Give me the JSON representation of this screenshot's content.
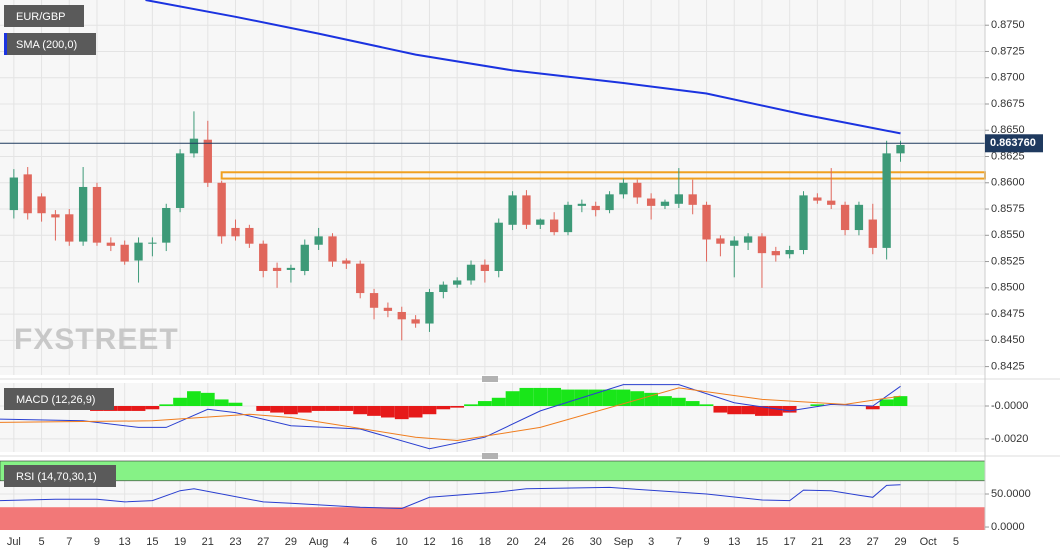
{
  "chart_data": [
    {
      "type": "candlestick",
      "symbol": "EUR/GBP",
      "watermark": "FXSTREET",
      "xlim": [
        -1,
        70.1
      ],
      "ylim": [
        0.8417,
        0.8774
      ],
      "yticks": [
        {
          "value": 0.8425,
          "label": "0.8425"
        },
        {
          "value": 0.845,
          "label": "0.8450"
        },
        {
          "value": 0.8475,
          "label": "0.8475"
        },
        {
          "value": 0.85,
          "label": "0.8500"
        },
        {
          "value": 0.8525,
          "label": "0.8525"
        },
        {
          "value": 0.855,
          "label": "0.8550"
        },
        {
          "value": 0.8575,
          "label": "0.8575"
        },
        {
          "value": 0.86,
          "label": "0.8600"
        },
        {
          "value": 0.8625,
          "label": "0.8625"
        },
        {
          "value": 0.865,
          "label": "0.8650"
        },
        {
          "value": 0.8675,
          "label": "0.8675"
        },
        {
          "value": 0.87,
          "label": "0.8700"
        },
        {
          "value": 0.8725,
          "label": "0.8725"
        },
        {
          "value": 0.875,
          "label": "0.8750"
        }
      ],
      "up_color": "#3d9a78",
      "down_color": "#e0675c",
      "open": [
        0.8574,
        0.8608,
        0.8587,
        0.857,
        0.857,
        0.8544,
        0.8596,
        0.8543,
        0.8541,
        0.8526,
        0.8542,
        0.8543,
        0.8576,
        0.8628,
        0.8641,
        0.86,
        0.8557,
        0.8557,
        0.8542,
        0.8519,
        0.8517,
        0.8516,
        0.8541,
        0.8549,
        0.8526,
        0.8523,
        0.8495,
        0.8481,
        0.8477,
        0.847,
        0.8466,
        0.8496,
        0.8503,
        0.8507,
        0.8522,
        0.8516,
        0.856,
        0.8588,
        0.856,
        0.8565,
        0.8553,
        0.8578,
        0.8578,
        0.8574,
        0.8589,
        0.86,
        0.8585,
        0.8578,
        0.858,
        0.8589,
        0.8579,
        0.8547,
        0.854,
        0.8543,
        0.8549,
        0.8535,
        0.8532,
        0.8536,
        0.8586,
        0.8583,
        0.8579,
        0.8555,
        0.8565,
        0.8538,
        0.8628
      ],
      "high": [
        0.8613,
        0.8615,
        0.859,
        0.8574,
        0.8575,
        0.8615,
        0.86,
        0.8548,
        0.8545,
        0.8548,
        0.8548,
        0.858,
        0.8632,
        0.8668,
        0.8659,
        0.8602,
        0.8565,
        0.856,
        0.8545,
        0.8524,
        0.8522,
        0.8546,
        0.8557,
        0.8552,
        0.8528,
        0.8526,
        0.8499,
        0.8486,
        0.8482,
        0.8474,
        0.8499,
        0.8506,
        0.851,
        0.8526,
        0.8527,
        0.8566,
        0.8592,
        0.8593,
        0.8566,
        0.8572,
        0.8582,
        0.8584,
        0.8582,
        0.8592,
        0.8604,
        0.8603,
        0.859,
        0.8584,
        0.8614,
        0.8603,
        0.8582,
        0.855,
        0.8549,
        0.8552,
        0.8552,
        0.8539,
        0.854,
        0.8592,
        0.859,
        0.8614,
        0.8582,
        0.8582,
        0.858,
        0.864,
        0.864
      ],
      "low": [
        0.8566,
        0.8565,
        0.8563,
        0.8545,
        0.854,
        0.854,
        0.854,
        0.8535,
        0.8522,
        0.8505,
        0.853,
        0.8535,
        0.8572,
        0.8624,
        0.8596,
        0.8542,
        0.8545,
        0.8538,
        0.851,
        0.85,
        0.8505,
        0.8512,
        0.8536,
        0.852,
        0.8518,
        0.849,
        0.847,
        0.8472,
        0.845,
        0.8462,
        0.8458,
        0.849,
        0.85,
        0.8503,
        0.8505,
        0.851,
        0.8555,
        0.8556,
        0.8556,
        0.855,
        0.855,
        0.8572,
        0.8568,
        0.8571,
        0.8585,
        0.858,
        0.8565,
        0.8575,
        0.8576,
        0.857,
        0.8525,
        0.853,
        0.851,
        0.8536,
        0.85,
        0.8525,
        0.8528,
        0.8532,
        0.858,
        0.8575,
        0.855,
        0.855,
        0.8532,
        0.8527,
        0.862
      ],
      "close": [
        0.8605,
        0.8571,
        0.8571,
        0.8567,
        0.8544,
        0.8596,
        0.8543,
        0.854,
        0.8525,
        0.8543,
        0.8543,
        0.8576,
        0.8628,
        0.8642,
        0.86,
        0.8549,
        0.8549,
        0.8542,
        0.8516,
        0.8516,
        0.8519,
        0.8541,
        0.8549,
        0.8525,
        0.8523,
        0.8495,
        0.8481,
        0.8478,
        0.847,
        0.8466,
        0.8496,
        0.8503,
        0.8507,
        0.8522,
        0.8516,
        0.8562,
        0.8588,
        0.856,
        0.8565,
        0.8553,
        0.8579,
        0.858,
        0.8574,
        0.8589,
        0.86,
        0.8586,
        0.8578,
        0.8582,
        0.8589,
        0.8579,
        0.8546,
        0.8542,
        0.8545,
        0.8549,
        0.8533,
        0.8531,
        0.8536,
        0.8588,
        0.8583,
        0.8579,
        0.8555,
        0.8579,
        0.8538,
        0.8628,
        0.8636
      ],
      "series": [
        {
          "name": "SMA (200,0)",
          "color": "#1b33e0",
          "x": [
            9.5,
            16,
            22,
            29,
            36,
            44,
            50,
            57,
            64
          ],
          "values": [
            0.8774,
            0.8758,
            0.8742,
            0.8722,
            0.8707,
            0.8695,
            0.8685,
            0.8665,
            0.8647
          ]
        }
      ],
      "last_price": {
        "value": 0.86376,
        "label": "0.863760"
      },
      "last_price_color": "#1f3a5f",
      "zone": [
        0.8604,
        0.861
      ],
      "zone_start": 15,
      "zone_color": "#f0a020"
    },
    {
      "type": "macd",
      "title": "MACD (12,26,9)",
      "xlim": [
        -1,
        70.1
      ],
      "ylim": [
        -0.0028,
        0.0014
      ],
      "yticks": [
        {
          "value": -0.002,
          "label": "-0.0020"
        },
        {
          "value": 0,
          "label": "-0.0000"
        }
      ],
      "up_color": "#19e619",
      "down_color": "#e61919",
      "histogram": [
        0,
        0,
        -0.0001,
        -0.0001,
        -0.0002,
        -0.0002,
        -0.0003,
        -0.0003,
        -0.0003,
        -0.0003,
        -0.0002,
        0.0001,
        0.0005,
        0.0009,
        0.0008,
        0.0004,
        0.0002,
        0,
        -0.0003,
        -0.0004,
        -0.0005,
        -0.0004,
        -0.0003,
        -0.0003,
        -0.0003,
        -0.0005,
        -0.0006,
        -0.0007,
        -0.0008,
        -0.0007,
        -0.0005,
        -0.0002,
        -0.0001,
        0.0001,
        0.0003,
        0.0005,
        0.0009,
        0.0011,
        0.0011,
        0.0011,
        0.001,
        0.001,
        0.001,
        0.001,
        0.001,
        0.0009,
        0.0008,
        0.0006,
        0.0005,
        0.0003,
        0.0001,
        -0.0004,
        -0.0005,
        -0.0005,
        -0.0006,
        -0.0006,
        -0.0004,
        0,
        0.0001,
        0,
        0,
        0,
        -0.0002,
        0.0004,
        0.0006
      ],
      "series": [
        {
          "color": "#2a3fd0",
          "x": [
            -1,
            5,
            9,
            11,
            14,
            16,
            20,
            25,
            30,
            34,
            38,
            44,
            48,
            52,
            56,
            59,
            62,
            64
          ],
          "values": [
            -0.0008,
            -0.0009,
            -0.0013,
            -0.0013,
            -0.0002,
            -0.0004,
            -0.0012,
            -0.0014,
            -0.0026,
            -0.0019,
            -0.0003,
            0.0013,
            0.0013,
            0.0002,
            -0.0003,
            0.0001,
            0,
            0.0012
          ]
        },
        {
          "color": "#f07d1e",
          "x": [
            -1,
            10,
            17,
            20,
            29,
            32,
            38,
            48,
            54,
            60,
            64
          ],
          "values": [
            -0.001,
            -0.0009,
            -0.0005,
            -0.0007,
            -0.0019,
            -0.0021,
            -0.0013,
            0.0011,
            0.0004,
            0.0001,
            0.0006
          ]
        }
      ]
    },
    {
      "type": "rsi",
      "title": "RSI (14,70,30,1)",
      "xlim": [
        -1,
        70.1
      ],
      "ylim": [
        -4.5,
        100
      ],
      "yticks": [
        {
          "value": 0,
          "label": "0.0000"
        },
        {
          "value": 50,
          "label": "50.0000"
        }
      ],
      "levels": [
        30,
        70
      ],
      "upper_color": "#86f286",
      "lower_color": "#f27878",
      "series": [
        {
          "color": "#2a3fd0",
          "x": [
            -1,
            3,
            6,
            8,
            10,
            12,
            13,
            15,
            18,
            20,
            25,
            28,
            30,
            35,
            37,
            43,
            45,
            50,
            54,
            56,
            57,
            59,
            61,
            62,
            63,
            64
          ],
          "values": [
            40,
            42,
            42,
            38,
            40,
            55,
            58,
            50,
            38,
            36,
            30,
            28,
            45,
            53,
            58,
            60,
            57,
            50,
            41,
            40,
            56,
            55,
            48,
            45,
            63,
            64
          ]
        }
      ],
      "xticks": [
        {
          "value": 0,
          "label": "Jul"
        },
        {
          "value": 2,
          "label": "5"
        },
        {
          "value": 4,
          "label": "7"
        },
        {
          "value": 6,
          "label": "9"
        },
        {
          "value": 8,
          "label": "13"
        },
        {
          "value": 10,
          "label": "15"
        },
        {
          "value": 12,
          "label": "19"
        },
        {
          "value": 14,
          "label": "21"
        },
        {
          "value": 16,
          "label": "23"
        },
        {
          "value": 18,
          "label": "27"
        },
        {
          "value": 20,
          "label": "29"
        },
        {
          "value": 22,
          "label": "Aug"
        },
        {
          "value": 24,
          "label": "4"
        },
        {
          "value": 26,
          "label": "6"
        },
        {
          "value": 28,
          "label": "10"
        },
        {
          "value": 30,
          "label": "12"
        },
        {
          "value": 32,
          "label": "16"
        },
        {
          "value": 34,
          "label": "18"
        },
        {
          "value": 36,
          "label": "20"
        },
        {
          "value": 38,
          "label": "24"
        },
        {
          "value": 40,
          "label": "26"
        },
        {
          "value": 42,
          "label": "30"
        },
        {
          "value": 44,
          "label": "Sep"
        },
        {
          "value": 46,
          "label": "3"
        },
        {
          "value": 48,
          "label": "7"
        },
        {
          "value": 50,
          "label": "9"
        },
        {
          "value": 52,
          "label": "13"
        },
        {
          "value": 54,
          "label": "15"
        },
        {
          "value": 56,
          "label": "17"
        },
        {
          "value": 58,
          "label": "21"
        },
        {
          "value": 60,
          "label": "23"
        },
        {
          "value": 62,
          "label": "27"
        },
        {
          "value": 64,
          "label": "29"
        },
        {
          "value": 66,
          "label": "Oct"
        },
        {
          "value": 68,
          "label": "5"
        }
      ]
    }
  ]
}
